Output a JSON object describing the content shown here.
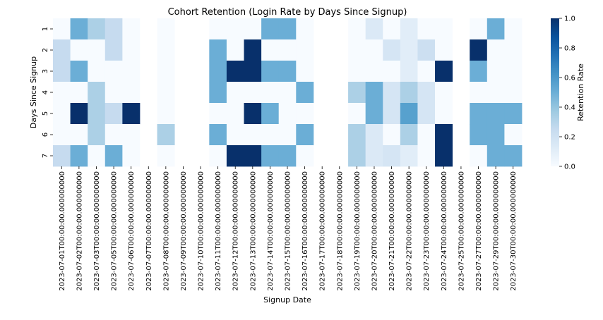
{
  "chart_data": {
    "type": "heatmap",
    "title": "Cohort Retention (Login Rate by Days Since Signup)",
    "xlabel": "Signup Date",
    "ylabel": "Days Since Signup",
    "x": [
      "2023-07-01T00:00:00.000000000",
      "2023-07-02T00:00:00.000000000",
      "2023-07-03T00:00:00.000000000",
      "2023-07-05T00:00:00.000000000",
      "2023-07-06T00:00:00.000000000",
      "2023-07-07T00:00:00.000000000",
      "2023-07-08T00:00:00.000000000",
      "2023-07-09T00:00:00.000000000",
      "2023-07-10T00:00:00.000000000",
      "2023-07-11T00:00:00.000000000",
      "2023-07-12T00:00:00.000000000",
      "2023-07-13T00:00:00.000000000",
      "2023-07-14T00:00:00.000000000",
      "2023-07-15T00:00:00.000000000",
      "2023-07-16T00:00:00.000000000",
      "2023-07-17T00:00:00.000000000",
      "2023-07-18T00:00:00.000000000",
      "2023-07-19T00:00:00.000000000",
      "2023-07-20T00:00:00.000000000",
      "2023-07-21T00:00:00.000000000",
      "2023-07-22T00:00:00.000000000",
      "2023-07-23T00:00:00.000000000",
      "2023-07-24T00:00:00.000000000",
      "2023-07-25T00:00:00.000000000",
      "2023-07-27T00:00:00.000000000",
      "2023-07-29T00:00:00.000000000",
      "2023-07-30T00:00:00.000000000"
    ],
    "y": [
      "1",
      "2",
      "3",
      "4",
      "5",
      "6",
      "7"
    ],
    "values": [
      [
        0,
        0.5,
        0.33,
        0.25,
        0,
        null,
        0,
        null,
        null,
        0,
        0,
        0,
        0.5,
        0.5,
        0,
        null,
        null,
        0,
        0.14,
        0,
        0.11,
        0,
        0,
        null,
        0,
        0.5,
        0
      ],
      [
        0.25,
        0,
        0,
        0.25,
        0,
        null,
        0,
        null,
        null,
        0.5,
        0,
        1,
        0,
        0,
        0,
        null,
        null,
        0,
        0,
        0.17,
        0.11,
        0.22,
        0,
        null,
        1,
        0,
        0
      ],
      [
        0.25,
        0.5,
        0,
        0,
        0,
        null,
        0,
        null,
        null,
        0.5,
        1,
        1,
        0.5,
        0.5,
        0,
        null,
        null,
        0,
        0,
        0,
        0.11,
        0,
        1,
        null,
        0.5,
        0,
        0
      ],
      [
        0,
        0,
        0.33,
        0,
        0,
        null,
        0,
        null,
        null,
        0.5,
        0,
        0,
        0,
        0,
        0.5,
        null,
        null,
        0.33,
        0.5,
        0.17,
        0.33,
        0.17,
        0,
        null,
        0,
        0,
        0
      ],
      [
        0,
        1,
        0.33,
        0.25,
        1,
        null,
        0,
        null,
        null,
        0,
        0,
        1,
        0.5,
        0,
        0,
        null,
        null,
        0,
        0.5,
        0.17,
        0.56,
        0.17,
        0,
        null,
        0.5,
        0.5,
        0.5
      ],
      [
        0,
        0,
        0.33,
        0,
        0,
        null,
        0.33,
        null,
        null,
        0.5,
        0,
        0,
        0,
        0,
        0.5,
        null,
        null,
        0.33,
        0.14,
        0,
        0.33,
        0,
        1,
        null,
        0.5,
        0.5,
        0
      ],
      [
        0.25,
        0.5,
        0,
        0.5,
        0,
        null,
        0,
        null,
        null,
        0,
        1,
        1,
        0.5,
        0.5,
        0,
        null,
        null,
        0.33,
        0.14,
        0.17,
        0.11,
        0,
        1,
        null,
        0,
        0.5,
        0.5
      ]
    ],
    "colorbar": {
      "label": "Retention Rate",
      "min": 0.0,
      "max": 1.0,
      "ticks": [
        "0.0",
        "0.2",
        "0.4",
        "0.6",
        "0.8",
        "1.0"
      ]
    },
    "colormap": "Blues"
  }
}
